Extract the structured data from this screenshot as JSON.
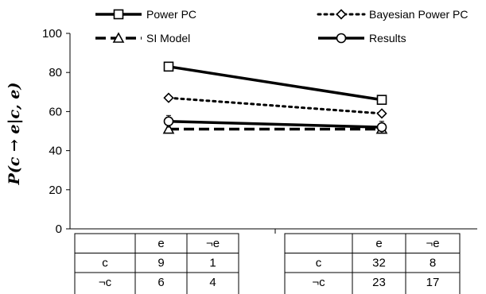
{
  "chart_data": {
    "type": "line",
    "ylabel": "P(c → e|c, e)",
    "ylim": [
      0,
      100
    ],
    "yticks": [
      0,
      20,
      40,
      60,
      80,
      100
    ],
    "legend_position": "top",
    "series": [
      {
        "name": "Power PC",
        "values": [
          83,
          66
        ],
        "marker": "square",
        "line": "solid",
        "color": "#000000"
      },
      {
        "name": "Bayesian Power PC",
        "values": [
          67,
          59
        ],
        "marker": "diamond",
        "line": "dotted",
        "color": "#000000"
      },
      {
        "name": "SI Model",
        "values": [
          51,
          51
        ],
        "marker": "triangle",
        "line": "dashed",
        "color": "#000000"
      },
      {
        "name": "Results",
        "values": [
          55,
          52
        ],
        "marker": "circle",
        "line": "solid",
        "color": "#000000",
        "error": [
          3,
          3
        ]
      }
    ],
    "conditions": [
      {
        "header": [
          "",
          "e",
          "¬e"
        ],
        "rows": [
          [
            "c",
            "9",
            "1"
          ],
          [
            "¬c",
            "6",
            "4"
          ]
        ]
      },
      {
        "header": [
          "",
          "e",
          "¬e"
        ],
        "rows": [
          [
            "c",
            "32",
            "8"
          ],
          [
            "¬c",
            "23",
            "17"
          ]
        ]
      }
    ]
  }
}
